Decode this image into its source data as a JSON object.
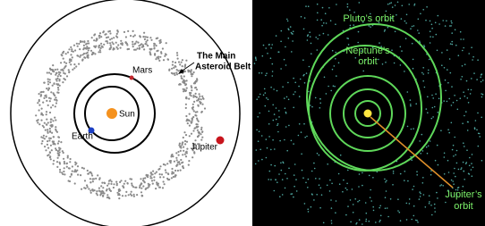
{
  "left": {
    "labels": {
      "sun": "Sun",
      "earth": "Earth",
      "mars": "Mars",
      "jupiter": "Jupiter",
      "belt": [
        "The Main",
        "Asteroid Belt"
      ]
    }
  },
  "right": {
    "labels": {
      "pluto": "Pluto’s orbit",
      "neptune": [
        "Neptune’s",
        "orbit"
      ],
      "jupiter": [
        "Jupiter’s",
        "orbit"
      ]
    }
  }
}
